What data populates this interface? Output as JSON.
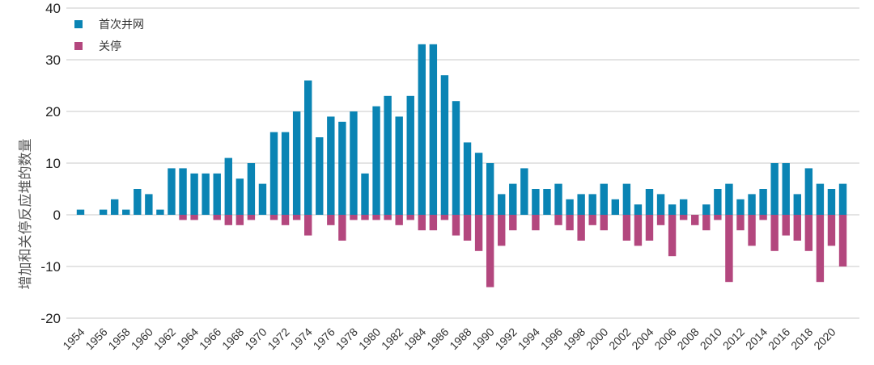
{
  "chart_data": {
    "type": "bar",
    "ylabel": "增加和关停反应堆的数量",
    "xlabel": "",
    "ylim": [
      -20,
      40
    ],
    "yticks": [
      40,
      30,
      20,
      10,
      0,
      -10,
      -20
    ],
    "grid": "horizontal",
    "legend_position": "top-left",
    "x": [
      1954,
      1955,
      1956,
      1957,
      1958,
      1959,
      1960,
      1961,
      1962,
      1963,
      1964,
      1965,
      1966,
      1967,
      1968,
      1969,
      1970,
      1971,
      1972,
      1973,
      1974,
      1975,
      1976,
      1977,
      1978,
      1979,
      1980,
      1981,
      1982,
      1983,
      1984,
      1985,
      1986,
      1987,
      1988,
      1989,
      1990,
      1991,
      1992,
      1993,
      1994,
      1995,
      1996,
      1997,
      1998,
      1999,
      2000,
      2001,
      2002,
      2003,
      2004,
      2005,
      2006,
      2007,
      2008,
      2009,
      2010,
      2011,
      2012,
      2013,
      2014,
      2015,
      2016,
      2017,
      2018,
      2019,
      2020,
      2021
    ],
    "x_tick_labels": [
      "1954",
      "1956",
      "1958",
      "1960",
      "1962",
      "1964",
      "1966",
      "1968",
      "1970",
      "1972",
      "1974",
      "1976",
      "1978",
      "1980",
      "1982",
      "1984",
      "1986",
      "1988",
      "1990",
      "1992",
      "1994",
      "1996",
      "1998",
      "2000",
      "2002",
      "2004",
      "2006",
      "2008",
      "2010",
      "2012",
      "2014",
      "2016",
      "2018",
      "2020"
    ],
    "series": [
      {
        "name": "首次并网",
        "color": "#0a84b4",
        "values": [
          1,
          0,
          1,
          3,
          1,
          5,
          4,
          1,
          9,
          9,
          8,
          8,
          8,
          11,
          7,
          10,
          6,
          16,
          16,
          20,
          26,
          15,
          19,
          18,
          20,
          8,
          21,
          23,
          19,
          23,
          33,
          33,
          27,
          22,
          14,
          12,
          10,
          4,
          6,
          9,
          5,
          5,
          6,
          3,
          4,
          4,
          6,
          3,
          6,
          2,
          5,
          4,
          2,
          3,
          0,
          2,
          5,
          6,
          3,
          4,
          5,
          10,
          10,
          4,
          9,
          6,
          5,
          6
        ]
      },
      {
        "name": "关停",
        "color": "#b3477e",
        "values": [
          0,
          0,
          0,
          0,
          0,
          0,
          0,
          0,
          0,
          -1,
          -1,
          0,
          -1,
          -2,
          -2,
          -1,
          0,
          -1,
          -2,
          -1,
          -4,
          0,
          -2,
          -5,
          -1,
          -1,
          -1,
          -1,
          -2,
          -1,
          -3,
          -3,
          -1,
          -4,
          -5,
          -7,
          -14,
          -6,
          -3,
          0,
          -3,
          0,
          -2,
          -3,
          -5,
          -2,
          -3,
          0,
          -5,
          -6,
          -5,
          -2,
          -8,
          -1,
          -2,
          -3,
          -1,
          -13,
          -3,
          -6,
          -1,
          -7,
          -4,
          -5,
          -7,
          -13,
          -6,
          -10
        ]
      }
    ]
  }
}
